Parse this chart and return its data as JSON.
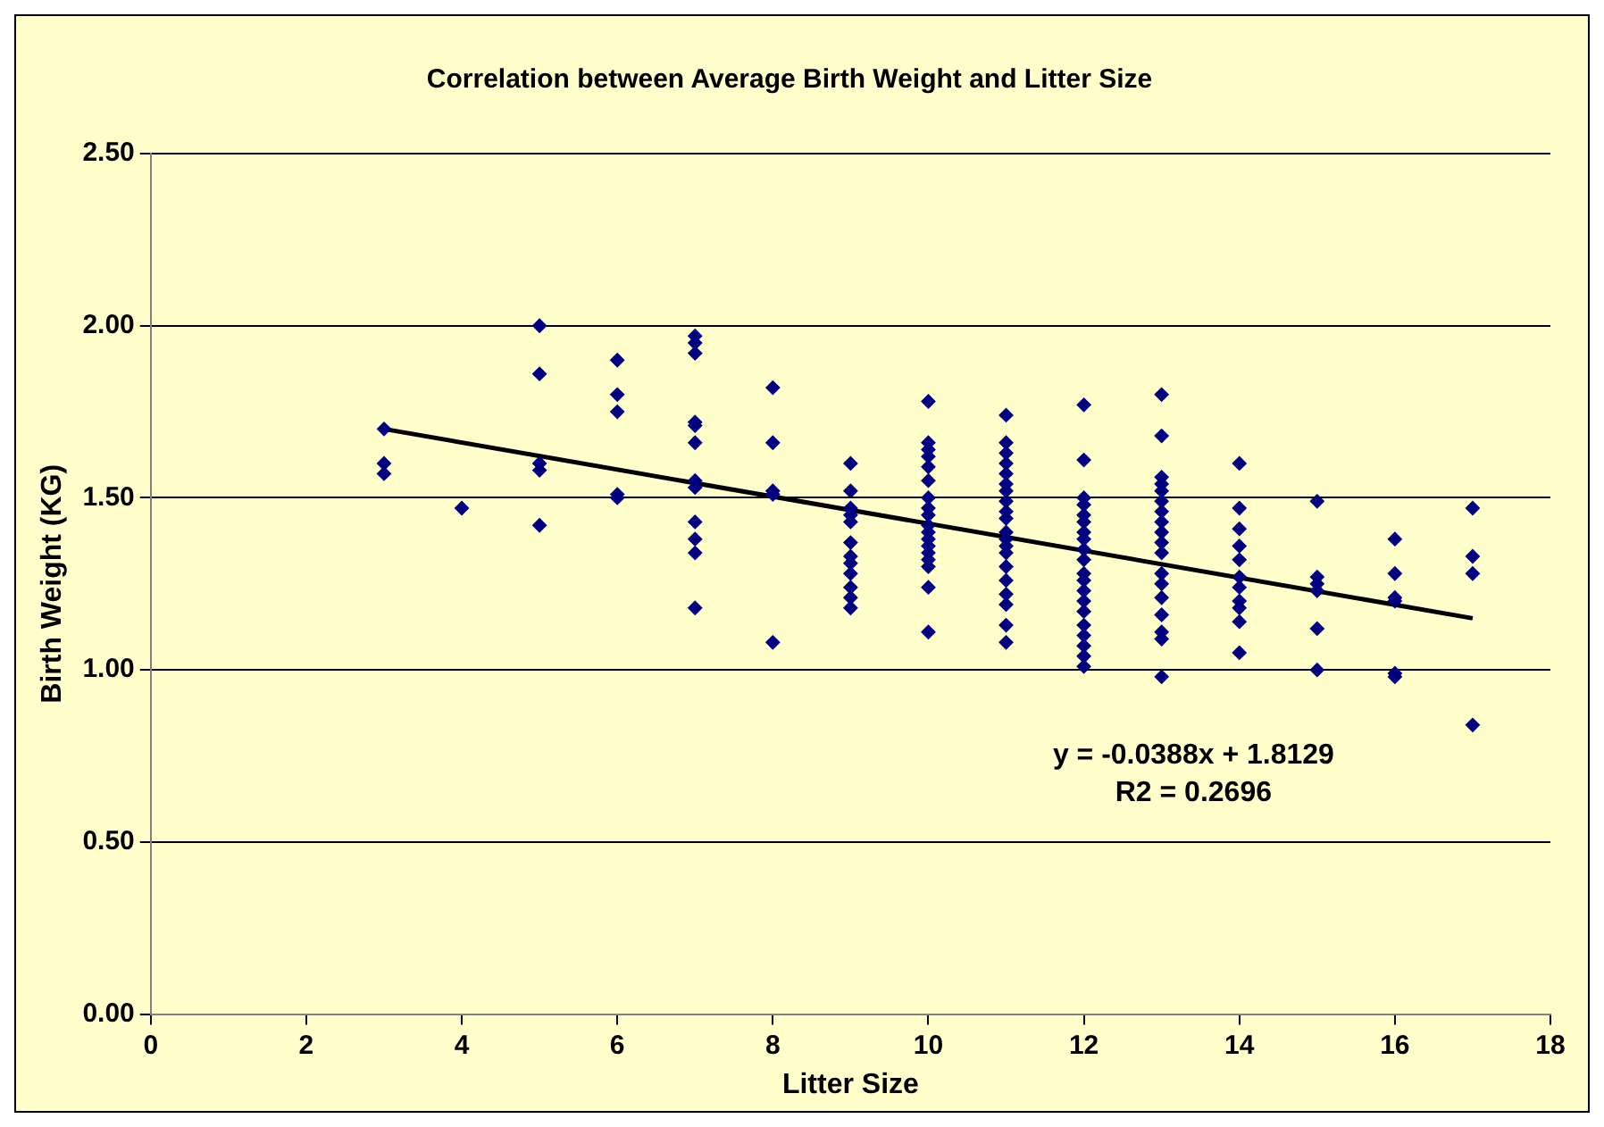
{
  "chart_data": {
    "type": "scatter",
    "title": "Correlation between Average Birth Weight and Litter Size",
    "xlabel": "Litter Size",
    "ylabel": "Birth Weight (KG)",
    "annotations": [
      "y = -0.0388x + 1.8129",
      "R2 = 0.2696"
    ],
    "xlim": [
      0,
      18
    ],
    "xticks": [
      0,
      2,
      4,
      6,
      8,
      10,
      12,
      14,
      16,
      18
    ],
    "ylim": [
      0,
      2.5
    ],
    "yticks": [
      {
        "value": 0,
        "label": "0.00"
      },
      {
        "value": 0.5,
        "label": "0.50"
      },
      {
        "value": 1,
        "label": "1.00"
      },
      {
        "value": 1.5,
        "label": "1.50"
      },
      {
        "value": 2,
        "label": "2.00"
      },
      {
        "value": 2.5,
        "label": "2.50"
      }
    ],
    "grid": "y",
    "legend": false,
    "series": [
      {
        "marker": "diamond",
        "color": "#000080",
        "x": [
          3,
          3,
          3,
          4,
          5,
          5,
          5,
          5,
          5,
          6,
          6,
          6,
          6,
          6,
          7,
          7,
          7,
          7,
          7,
          7,
          7,
          7,
          7,
          7,
          7,
          7,
          8,
          8,
          8,
          8,
          8,
          9,
          9,
          9,
          9,
          9,
          9,
          9,
          9,
          9,
          9,
          9,
          9,
          10,
          10,
          10,
          10,
          10,
          10,
          10,
          10,
          10,
          10,
          10,
          10,
          10,
          10,
          10,
          10,
          10,
          10,
          11,
          11,
          11,
          11,
          11,
          11,
          11,
          11,
          11,
          11,
          11,
          11,
          11,
          11,
          11,
          11,
          11,
          11,
          11,
          11,
          12,
          12,
          12,
          12,
          12,
          12,
          12,
          12,
          12,
          12,
          12,
          12,
          12,
          12,
          12,
          12,
          12,
          12,
          12,
          12,
          13,
          13,
          13,
          13,
          13,
          13,
          13,
          13,
          13,
          13,
          13,
          13,
          13,
          13,
          13,
          13,
          13,
          13,
          14,
          14,
          14,
          14,
          14,
          14,
          14,
          14,
          14,
          14,
          14,
          15,
          15,
          15,
          15,
          15,
          15,
          16,
          16,
          16,
          16,
          16,
          16,
          17,
          17,
          17,
          17
        ],
        "values": [
          1.7,
          1.6,
          1.57,
          1.47,
          2.0,
          1.86,
          1.6,
          1.58,
          1.42,
          1.9,
          1.8,
          1.75,
          1.51,
          1.5,
          1.97,
          1.95,
          1.92,
          1.72,
          1.71,
          1.66,
          1.55,
          1.53,
          1.43,
          1.38,
          1.34,
          1.18,
          1.82,
          1.66,
          1.52,
          1.51,
          1.08,
          1.6,
          1.52,
          1.47,
          1.45,
          1.43,
          1.37,
          1.33,
          1.31,
          1.28,
          1.24,
          1.21,
          1.18,
          1.78,
          1.66,
          1.64,
          1.62,
          1.59,
          1.55,
          1.5,
          1.47,
          1.45,
          1.42,
          1.4,
          1.38,
          1.36,
          1.34,
          1.32,
          1.3,
          1.24,
          1.11,
          1.74,
          1.66,
          1.63,
          1.6,
          1.57,
          1.54,
          1.52,
          1.49,
          1.46,
          1.44,
          1.4,
          1.38,
          1.36,
          1.34,
          1.3,
          1.26,
          1.22,
          1.19,
          1.13,
          1.08,
          1.77,
          1.61,
          1.5,
          1.48,
          1.45,
          1.43,
          1.4,
          1.38,
          1.35,
          1.32,
          1.28,
          1.26,
          1.23,
          1.2,
          1.17,
          1.13,
          1.1,
          1.07,
          1.04,
          1.01,
          1.8,
          1.68,
          1.56,
          1.54,
          1.52,
          1.49,
          1.46,
          1.43,
          1.4,
          1.37,
          1.34,
          1.28,
          1.25,
          1.21,
          1.16,
          1.11,
          1.09,
          0.98,
          1.6,
          1.47,
          1.41,
          1.36,
          1.32,
          1.27,
          1.24,
          1.2,
          1.18,
          1.14,
          1.05,
          1.49,
          1.27,
          1.25,
          1.23,
          1.12,
          1.0,
          1.38,
          1.28,
          1.21,
          1.2,
          0.99,
          0.98,
          1.47,
          1.33,
          1.28,
          0.84
        ]
      },
      {
        "type": "line",
        "color": "#000000",
        "x": [
          3,
          17
        ],
        "values": [
          1.7,
          1.15
        ]
      }
    ]
  }
}
